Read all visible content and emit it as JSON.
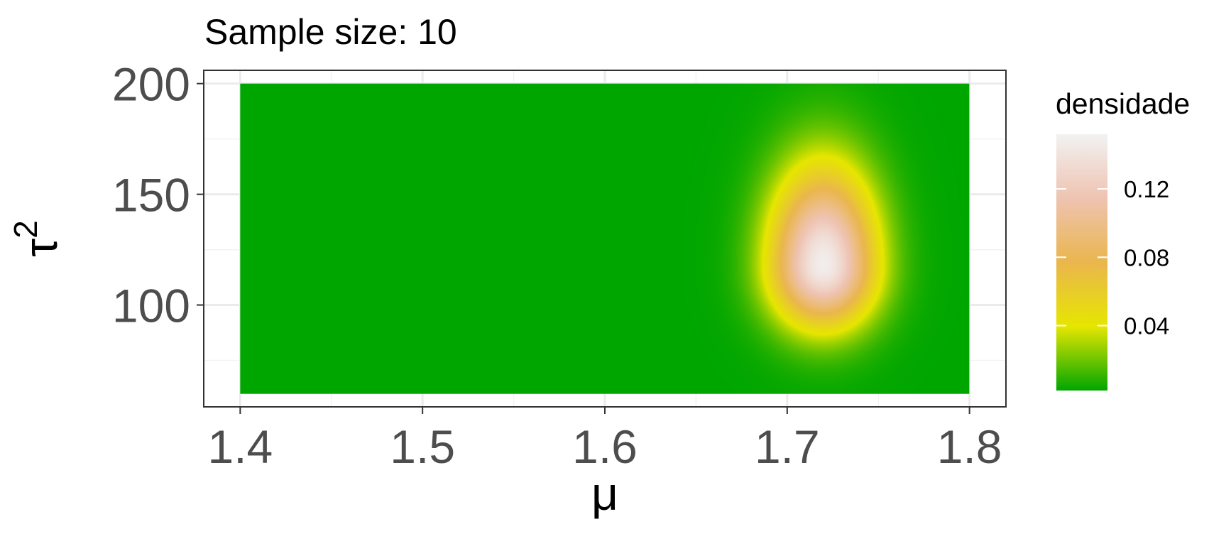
{
  "chart_data": {
    "type": "heatmap",
    "title": "Sample size: 10",
    "xlabel": "μ",
    "ylabel_base": "τ",
    "ylabel_exponent": "2",
    "xlim": [
      1.38,
      1.82
    ],
    "ylim": [
      54,
      206
    ],
    "x_ticks": [
      1.4,
      1.5,
      1.6,
      1.7,
      1.8
    ],
    "x_tick_labels": [
      "1.4",
      "1.5",
      "1.6",
      "1.7",
      "1.8"
    ],
    "y_ticks": [
      100,
      150,
      200
    ],
    "y_tick_labels": [
      "100",
      "150",
      "200"
    ],
    "data_extent": {
      "x": [
        1.4,
        1.8
      ],
      "y": [
        60,
        200
      ]
    },
    "grid": true,
    "density_peak": {
      "x": 1.72,
      "y": 118,
      "value": 0.148
    },
    "legend": {
      "title": "densidade",
      "placement": "right",
      "min": 0.002,
      "max": 0.152,
      "ticks": [
        0.04,
        0.08,
        0.12
      ],
      "tick_labels": [
        "0.04",
        "0.08",
        "0.12"
      ],
      "colors": [
        "#00a600",
        "#e6e600",
        "#eab64e",
        "#eec3b1",
        "#f2f2f2"
      ]
    }
  }
}
